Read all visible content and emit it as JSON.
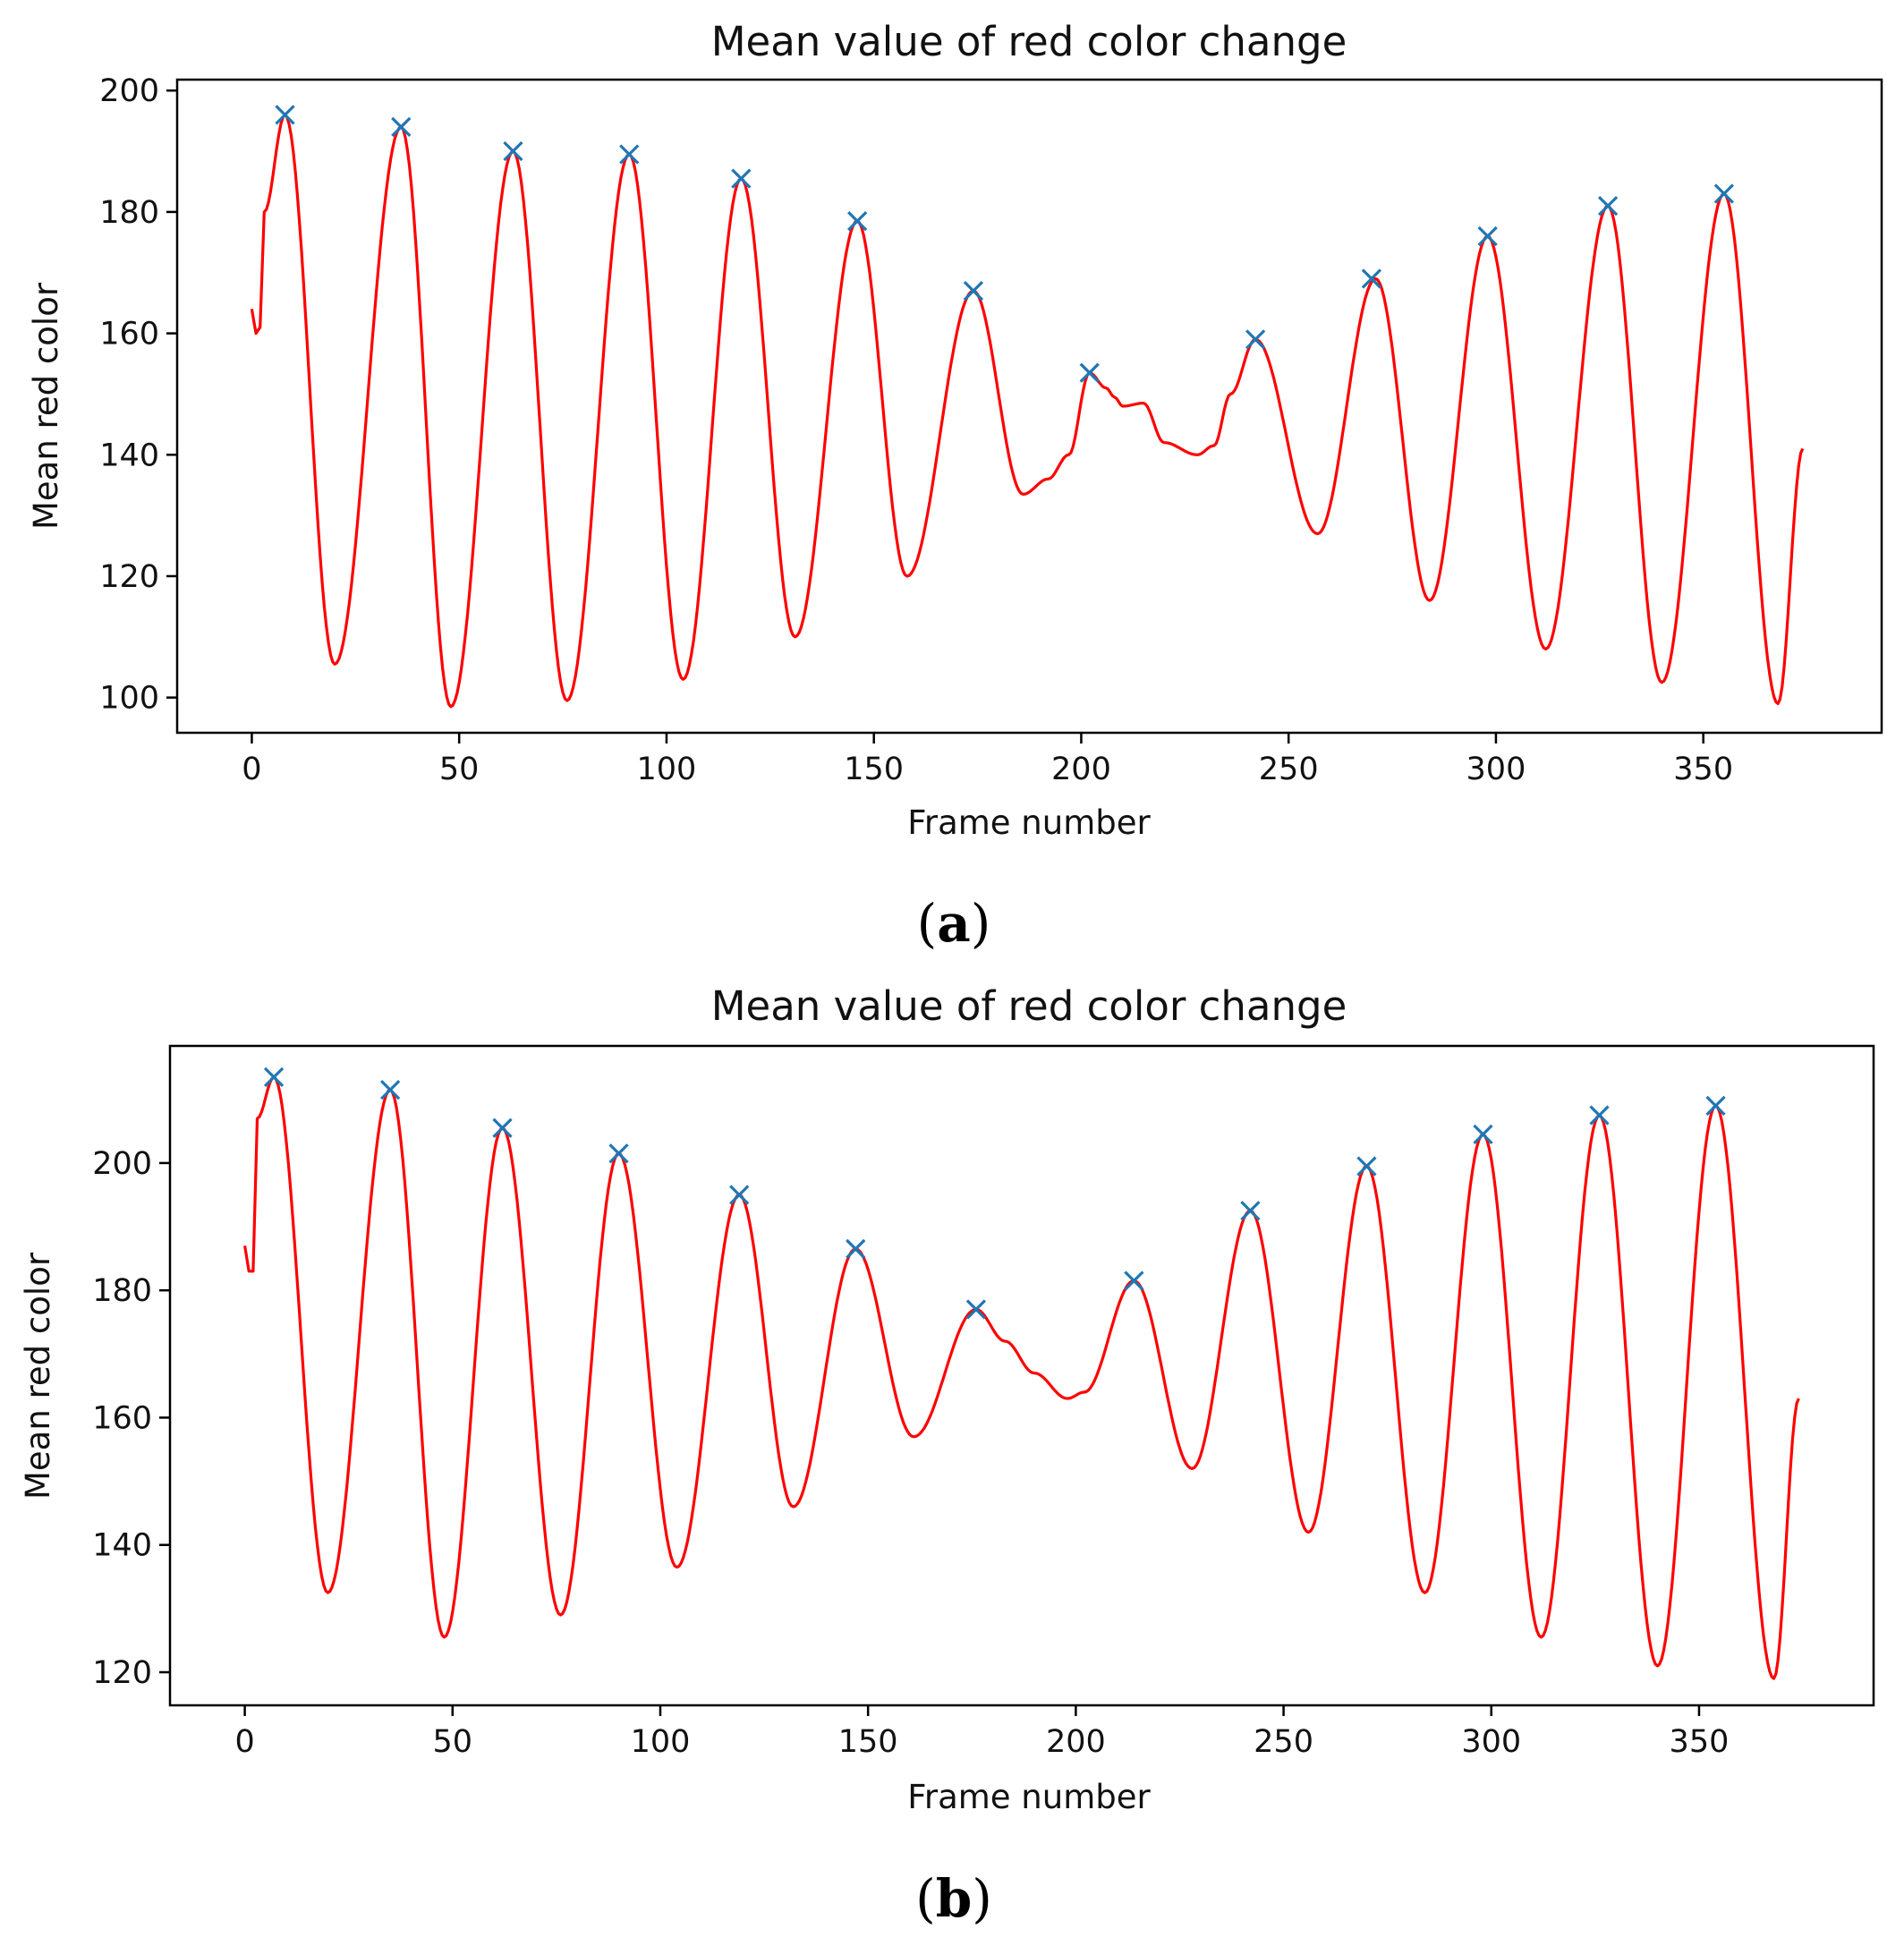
{
  "figure": {
    "panels": [
      {
        "id": "a",
        "label_open": "(",
        "label_letter": "a",
        "label_close": ")"
      },
      {
        "id": "b",
        "label_open": "(",
        "label_letter": "b",
        "label_close": ")"
      }
    ]
  },
  "chart_data": [
    {
      "type": "line",
      "panel": "a",
      "title": "Mean value of red color change",
      "xlabel": "Frame number",
      "ylabel": "Mean red color",
      "xlim": [
        -18,
        393
      ],
      "ylim": [
        94.2,
        201.8
      ],
      "xticks": [
        0,
        50,
        100,
        150,
        200,
        250,
        300,
        350
      ],
      "yticks": [
        100,
        120,
        140,
        160,
        180,
        200
      ],
      "line_color": "#ff0000",
      "marker_color": "#1f77b4",
      "series": [
        {
          "name": "Mean red color",
          "anchors": [
            [
              0,
              164
            ],
            [
              1,
              160
            ],
            [
              2,
              161
            ],
            [
              3,
              180
            ],
            [
              8,
              196
            ],
            [
              20,
              105.5
            ],
            [
              36,
              194
            ],
            [
              48,
              98.5
            ],
            [
              63,
              190
            ],
            [
              76,
              99.5
            ],
            [
              91,
              189.5
            ],
            [
              104,
              103
            ],
            [
              118,
              185.5
            ],
            [
              131,
              110
            ],
            [
              146,
              178.5
            ],
            [
              158,
              120
            ],
            [
              174,
              167
            ],
            [
              186,
              133.5
            ],
            [
              192,
              136
            ],
            [
              197,
              140
            ],
            [
              202,
              153.5
            ],
            [
              206,
              151
            ],
            [
              208,
              149.5
            ],
            [
              210,
              148
            ],
            [
              215,
              148.5
            ],
            [
              220,
              142
            ],
            [
              228,
              140
            ],
            [
              232,
              141.5
            ],
            [
              236,
              150
            ],
            [
              242,
              159
            ],
            [
              257,
              127
            ],
            [
              271,
              169
            ],
            [
              284,
              116
            ],
            [
              298,
              176
            ],
            [
              312,
              108
            ],
            [
              327,
              181
            ],
            [
              340,
              102.5
            ],
            [
              355,
              183
            ],
            [
              368,
              99
            ],
            [
              374,
              141
            ]
          ]
        }
      ],
      "peaks": [
        {
          "x": 8,
          "y": 196
        },
        {
          "x": 36,
          "y": 194
        },
        {
          "x": 63,
          "y": 190
        },
        {
          "x": 91,
          "y": 189.5
        },
        {
          "x": 118,
          "y": 185.5
        },
        {
          "x": 146,
          "y": 178.5
        },
        {
          "x": 174,
          "y": 167
        },
        {
          "x": 202,
          "y": 153.5
        },
        {
          "x": 242,
          "y": 159
        },
        {
          "x": 270,
          "y": 169
        },
        {
          "x": 298,
          "y": 176
        },
        {
          "x": 327,
          "y": 181
        },
        {
          "x": 355,
          "y": 183
        }
      ]
    },
    {
      "type": "line",
      "panel": "b",
      "title": "Mean value of red color change",
      "xlabel": "Frame number",
      "ylabel": "Mean red color",
      "xlim": [
        -18,
        392
      ],
      "ylim": [
        114.8,
        218.4
      ],
      "xticks": [
        0,
        50,
        100,
        150,
        200,
        250,
        300,
        350
      ],
      "yticks": [
        120,
        140,
        160,
        180,
        200
      ],
      "line_color": "#ff0000",
      "marker_color": "#1f77b4",
      "series": [
        {
          "name": "Mean red color",
          "anchors": [
            [
              0,
              187
            ],
            [
              1,
              183
            ],
            [
              2,
              183
            ],
            [
              3,
              207
            ],
            [
              7,
              213.5
            ],
            [
              20,
              132.5
            ],
            [
              35,
              211.5
            ],
            [
              48,
              125.5
            ],
            [
              62,
              205.5
            ],
            [
              76,
              129
            ],
            [
              90,
              201.5
            ],
            [
              104,
              136.5
            ],
            [
              119,
              195
            ],
            [
              132,
              146
            ],
            [
              147,
              186.5
            ],
            [
              161,
              157
            ],
            [
              176,
              177
            ],
            [
              183,
              172
            ],
            [
              190,
              167
            ],
            [
              198,
              163
            ],
            [
              202,
              164
            ],
            [
              214,
              181.5
            ],
            [
              228,
              152
            ],
            [
              242,
              192.5
            ],
            [
              256,
              142
            ],
            [
              270,
              199.5
            ],
            [
              284,
              132.5
            ],
            [
              298,
              204.5
            ],
            [
              312,
              125.5
            ],
            [
              326,
              207.5
            ],
            [
              340,
              121
            ],
            [
              354,
              209
            ],
            [
              368,
              119
            ],
            [
              374,
              163
            ]
          ]
        }
      ],
      "peaks": [
        {
          "x": 7,
          "y": 213.5
        },
        {
          "x": 35,
          "y": 211.5
        },
        {
          "x": 62,
          "y": 205.5
        },
        {
          "x": 90,
          "y": 201.5
        },
        {
          "x": 119,
          "y": 195
        },
        {
          "x": 147,
          "y": 186.5
        },
        {
          "x": 176,
          "y": 177
        },
        {
          "x": 214,
          "y": 181.5
        },
        {
          "x": 242,
          "y": 192.5
        },
        {
          "x": 270,
          "y": 199.5
        },
        {
          "x": 298,
          "y": 204.5
        },
        {
          "x": 326,
          "y": 207.5
        },
        {
          "x": 354,
          "y": 209
        }
      ]
    }
  ]
}
